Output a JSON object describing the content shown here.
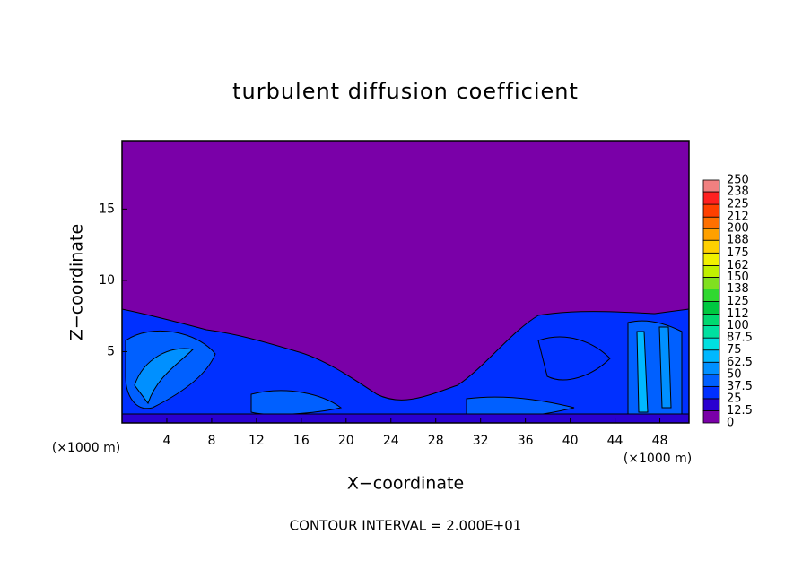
{
  "chart_data": {
    "type": "contour",
    "title": "turbulent diffusion coefficient",
    "x_label": "X−coordinate",
    "y_label": "Z−coordinate",
    "x_unit_left": "(×1000 m)",
    "x_unit_right": "(×1000 m)",
    "annotation": "CONTOUR INTERVAL = 2.000E+01",
    "xlim": [
      0,
      50.6
    ],
    "ylim": [
      0,
      19.8
    ],
    "xticks": [
      4,
      8,
      12,
      16,
      20,
      24,
      28,
      32,
      36,
      40,
      44,
      48
    ],
    "yticks": [
      5,
      10,
      15
    ],
    "background_color": "#7a00a8",
    "colorbar": {
      "ticks": [
        0,
        12.5,
        25,
        37.5,
        50,
        62.5,
        75,
        87.5,
        100,
        112,
        125,
        138,
        150,
        162,
        175,
        188,
        200,
        212,
        225,
        238,
        250
      ],
      "colors": [
        "#7a00a8",
        "#2a00d0",
        "#0030ff",
        "#0060ff",
        "#0090ff",
        "#00b8ff",
        "#00e0e0",
        "#00e0a0",
        "#00d870",
        "#00c840",
        "#30d830",
        "#80e020",
        "#c0f000",
        "#f0f000",
        "#ffd000",
        "#ffa000",
        "#ff7000",
        "#ff4000",
        "#ff2020",
        "#f08080"
      ]
    }
  }
}
